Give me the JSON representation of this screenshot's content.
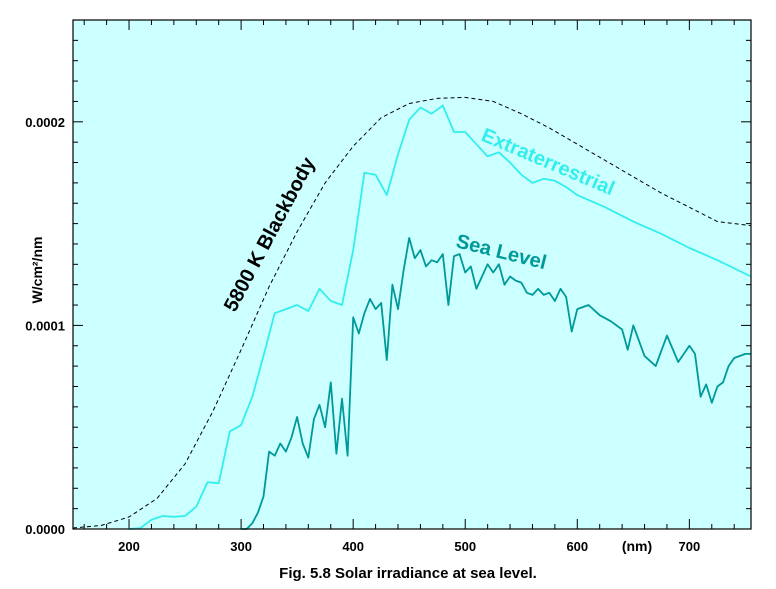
{
  "chart_data": {
    "type": "line",
    "caption": "Fig. 5.8  Solar irradiance at sea level.",
    "xlabel": "(nm)",
    "ylabel": "W/cm²/nm",
    "xlim": [
      150,
      755
    ],
    "ylim": [
      0,
      0.00025
    ],
    "xticks": [
      {
        "value": 200,
        "label": "200"
      },
      {
        "value": 300,
        "label": "300"
      },
      {
        "value": 400,
        "label": "400"
      },
      {
        "value": 500,
        "label": "500"
      },
      {
        "value": 600,
        "label": "600"
      },
      {
        "value": 700,
        "label": "700"
      }
    ],
    "yticks": [
      {
        "value": 0,
        "label": "0.0000"
      },
      {
        "value": 0.0001,
        "label": "0.0001"
      },
      {
        "value": 0.0002,
        "label": "0.0002"
      }
    ],
    "background_color": "#ccffff",
    "series": [
      {
        "name": "5800 K Blackbody",
        "label": "5800 K Blackbody",
        "color": "#000000",
        "style": "dashed",
        "x": [
          150,
          175,
          200,
          225,
          250,
          275,
          300,
          325,
          350,
          375,
          400,
          425,
          450,
          475,
          500,
          525,
          550,
          575,
          600,
          625,
          650,
          675,
          700,
          725,
          755
        ],
        "y": [
          5e-07,
          1.7e-06,
          5.9e-06,
          1.5e-05,
          3.2e-05,
          5.8e-05,
          8.8e-05,
          0.000119,
          0.000146,
          0.00017,
          0.000188,
          0.000202,
          0.000209,
          0.0002115,
          0.000212,
          0.00021,
          0.000204,
          0.000197,
          0.000189,
          0.000181,
          0.000173,
          0.000165,
          0.000158,
          0.000151,
          0.000149
        ]
      },
      {
        "name": "Extraterrestrial",
        "label": "Extraterrestrial",
        "color": "#33eeee",
        "style": "solid",
        "x": [
          200,
          210,
          220,
          230,
          240,
          250,
          260,
          270,
          280,
          290,
          300,
          310,
          320,
          330,
          340,
          350,
          360,
          370,
          380,
          390,
          400,
          410,
          420,
          430,
          440,
          450,
          460,
          470,
          480,
          490,
          500,
          510,
          520,
          530,
          540,
          550,
          560,
          570,
          580,
          590,
          600,
          625,
          650,
          675,
          700,
          725,
          755
        ],
        "y": [
          0.0,
          4e-07,
          4.5e-06,
          6.4e-06,
          6e-06,
          6.4e-06,
          1.1e-05,
          2.3e-05,
          2.25e-05,
          4.8e-05,
          5.1e-05,
          6.5e-05,
          8.5e-05,
          0.000106,
          0.000108,
          0.00011,
          0.000107,
          0.000118,
          0.000112,
          0.00011,
          0.000137,
          0.000175,
          0.000174,
          0.000164,
          0.000184,
          0.000201,
          0.000207,
          0.000204,
          0.000208,
          0.000195,
          0.000195,
          0.000189,
          0.000183,
          0.000185,
          0.00018,
          0.000174,
          0.00017,
          0.000172,
          0.000171,
          0.000168,
          0.000164,
          0.000158,
          0.000151,
          0.000145,
          0.000138,
          0.000132,
          0.000124
        ]
      },
      {
        "name": "Sea Level",
        "label": "Sea Level",
        "color": "#009999",
        "style": "solid",
        "x": [
          300,
          305,
          310,
          315,
          320,
          325,
          330,
          335,
          340,
          345,
          350,
          355,
          360,
          365,
          370,
          375,
          380,
          385,
          390,
          395,
          400,
          405,
          410,
          415,
          420,
          425,
          430,
          435,
          440,
          445,
          450,
          455,
          460,
          465,
          470,
          475,
          480,
          485,
          490,
          495,
          500,
          505,
          510,
          515,
          520,
          525,
          530,
          535,
          540,
          545,
          550,
          555,
          560,
          565,
          570,
          575,
          580,
          585,
          590,
          595,
          600,
          610,
          620,
          630,
          640,
          645,
          650,
          660,
          670,
          680,
          690,
          700,
          705,
          710,
          715,
          720,
          725,
          730,
          735,
          740,
          750,
          755
        ],
        "y": [
          0.0,
          0.0,
          2.8e-06,
          8e-06,
          1.6e-05,
          3.8e-05,
          3.6e-05,
          4.2e-05,
          3.8e-05,
          4.5e-05,
          5.5e-05,
          4.2e-05,
          3.5e-05,
          5.4e-05,
          6.1e-05,
          5e-05,
          7.2e-05,
          3.7e-05,
          6.4e-05,
          3.6e-05,
          0.000104,
          9.6e-05,
          0.000106,
          0.000113,
          0.000108,
          0.000111,
          8.3e-05,
          0.00012,
          0.000108,
          0.000127,
          0.000143,
          0.000133,
          0.000137,
          0.000129,
          0.000132,
          0.000131,
          0.000135,
          0.00011,
          0.000134,
          0.000135,
          0.000126,
          0.000129,
          0.000118,
          0.000124,
          0.00013,
          0.000126,
          0.00013,
          0.00012,
          0.000124,
          0.000122,
          0.000121,
          0.000116,
          0.000115,
          0.000118,
          0.000115,
          0.000116,
          0.000112,
          0.000118,
          0.000114,
          9.7e-05,
          0.000108,
          0.00011,
          0.000105,
          0.000102,
          9.8e-05,
          8.8e-05,
          0.0001,
          8.5e-05,
          8e-05,
          9.5e-05,
          8.2e-05,
          9e-05,
          8.6e-05,
          6.5e-05,
          7.1e-05,
          6.2e-05,
          7e-05,
          7.2e-05,
          8e-05,
          8.4e-05,
          8.6e-05,
          8.6e-05
        ]
      }
    ]
  }
}
